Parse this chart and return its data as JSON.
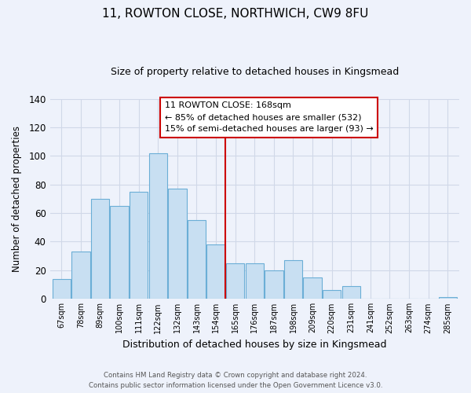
{
  "title1": "11, ROWTON CLOSE, NORTHWICH, CW9 8FU",
  "title2": "Size of property relative to detached houses in Kingsmead",
  "xlabel": "Distribution of detached houses by size in Kingsmead",
  "ylabel": "Number of detached properties",
  "bin_labels": [
    "67sqm",
    "78sqm",
    "89sqm",
    "100sqm",
    "111sqm",
    "122sqm",
    "132sqm",
    "143sqm",
    "154sqm",
    "165sqm",
    "176sqm",
    "187sqm",
    "198sqm",
    "209sqm",
    "220sqm",
    "231sqm",
    "241sqm",
    "252sqm",
    "263sqm",
    "274sqm",
    "285sqm"
  ],
  "bar_heights": [
    14,
    33,
    70,
    65,
    75,
    102,
    77,
    55,
    38,
    25,
    25,
    20,
    27,
    15,
    6,
    9,
    0,
    0,
    0,
    0,
    1
  ],
  "bar_color": "#c8dff2",
  "bar_edge_color": "#6baed6",
  "vline_x": 9.0,
  "vline_color": "#cc0000",
  "annotation_title": "11 ROWTON CLOSE: 168sqm",
  "annotation_line1": "← 85% of detached houses are smaller (532)",
  "annotation_line2": "15% of semi-detached houses are larger (93) →",
  "annotation_box_color": "#ffffff",
  "annotation_box_edge": "#cc0000",
  "ylim": [
    0,
    140
  ],
  "yticks": [
    0,
    20,
    40,
    60,
    80,
    100,
    120,
    140
  ],
  "footer1": "Contains HM Land Registry data © Crown copyright and database right 2024.",
  "footer2": "Contains public sector information licensed under the Open Government Licence v3.0.",
  "bg_color": "#eef2fb",
  "grid_color": "#d0d8e8"
}
